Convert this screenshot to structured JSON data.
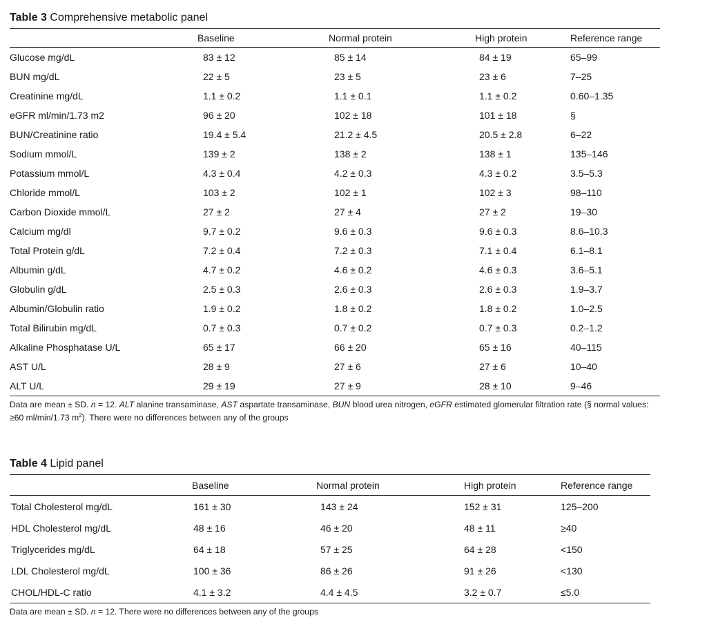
{
  "table3": {
    "label": "Table 3",
    "title": "Comprehensive metabolic panel",
    "headers": [
      "",
      "Baseline",
      "Normal protein",
      "High protein",
      "Reference range"
    ],
    "rows": [
      [
        "Glucose mg/dL",
        "83 ± 12",
        "85 ± 14",
        "84 ± 19",
        "65–99"
      ],
      [
        "BUN mg/dL",
        "22 ± 5",
        "23 ± 5",
        "23 ± 6",
        "7–25"
      ],
      [
        "Creatinine mg/dL",
        "1.1 ± 0.2",
        "1.1 ± 0.1",
        "1.1 ± 0.2",
        "0.60–1.35"
      ],
      [
        "eGFR ml/min/1.73 m2",
        "96 ± 20",
        "102 ± 18",
        "101 ± 18",
        "§"
      ],
      [
        "BUN/Creatinine ratio",
        "19.4 ± 5.4",
        "21.2 ± 4.5",
        "20.5 ± 2.8",
        "6–22"
      ],
      [
        "Sodium mmol/L",
        "139 ± 2",
        "138 ± 2",
        "138 ± 1",
        "135–146"
      ],
      [
        "Potassium mmol/L",
        "4.3 ± 0.4",
        "4.2 ± 0.3",
        "4.3 ± 0.2",
        "3.5–5.3"
      ],
      [
        "Chloride mmol/L",
        "103 ± 2",
        "102 ± 1",
        "102 ± 3",
        "98–110"
      ],
      [
        "Carbon Dioxide mmol/L",
        "27 ± 2",
        "27 ± 4",
        "27 ± 2",
        "19–30"
      ],
      [
        "Calcium mg/dl",
        "9.7 ± 0.2",
        "9.6 ± 0.3",
        "9.6 ± 0.3",
        "8.6–10.3"
      ],
      [
        "Total Protein g/dL",
        "7.2 ± 0.4",
        "7.2 ± 0.3",
        "7.1 ± 0.4",
        "6.1–8.1"
      ],
      [
        "Albumin g/dL",
        "4.7 ± 0.2",
        "4.6 ± 0.2",
        "4.6 ± 0.3",
        "3.6–5.1"
      ],
      [
        "Globulin g/dL",
        "2.5 ± 0.3",
        "2.6 ± 0.3",
        "2.6 ± 0.3",
        "1.9–3.7"
      ],
      [
        "Albumin/Globulin ratio",
        "1.9 ± 0.2",
        "1.8 ± 0.2",
        "1.8 ± 0.2",
        "1.0–2.5"
      ],
      [
        "Total Bilirubin mg/dL",
        "0.7 ± 0.3",
        "0.7 ± 0.2",
        "0.7 ± 0.3",
        "0.2–1.2"
      ],
      [
        "Alkaline Phosphatase U/L",
        "65 ± 17",
        "66 ± 20",
        "65 ± 16",
        "40–115"
      ],
      [
        "AST U/L",
        "28 ± 9",
        "27 ± 6",
        "27 ± 6",
        "10–40"
      ],
      [
        "ALT U/L",
        "29 ± 19",
        "27 ± 9",
        "28 ± 10",
        "9–46"
      ]
    ],
    "footnote": {
      "prefix": "Data are mean ± SD. ",
      "n_label": "n",
      "n_value": " = 12. ",
      "abbr_alt": "ALT",
      "def_alt": " alanine transaminase, ",
      "abbr_ast": "AST",
      "def_ast": " aspartate transaminase, ",
      "abbr_bun": "BUN",
      "def_bun": " blood urea nitrogen, ",
      "abbr_egfr": "eGFR",
      "def_egfr": " estimated glomerular filtration rate (§ normal values: ≥60 ml/min/1.73 m",
      "sup": "2",
      "suffix": "). There were no differences between any of the groups"
    }
  },
  "table4": {
    "label": "Table 4",
    "title": "Lipid panel",
    "headers": [
      "",
      "Baseline",
      "Normal protein",
      "High protein",
      "Reference range"
    ],
    "rows": [
      [
        "Total Cholesterol mg/dL",
        "161 ± 30",
        "143 ± 24",
        "152 ± 31",
        "125–200"
      ],
      [
        "HDL Cholesterol mg/dL",
        "48 ± 16",
        "46 ± 20",
        "48 ± 11",
        "≥40"
      ],
      [
        "Triglycerides mg/dL",
        "64 ± 18",
        "57 ± 25",
        "64 ± 28",
        "<150"
      ],
      [
        "LDL Cholesterol mg/dL",
        "100 ± 36",
        "86 ± 26",
        "91 ± 26",
        "<130"
      ],
      [
        "CHOL/HDL-C ratio",
        "4.1 ± 3.2",
        "4.4 ± 4.5",
        "3.2 ± 0.7",
        "≤5.0"
      ]
    ],
    "footnote": {
      "prefix": "Data are mean ± SD. ",
      "n_label": "n",
      "suffix": " = 12. There were no differences between any of the groups"
    }
  }
}
